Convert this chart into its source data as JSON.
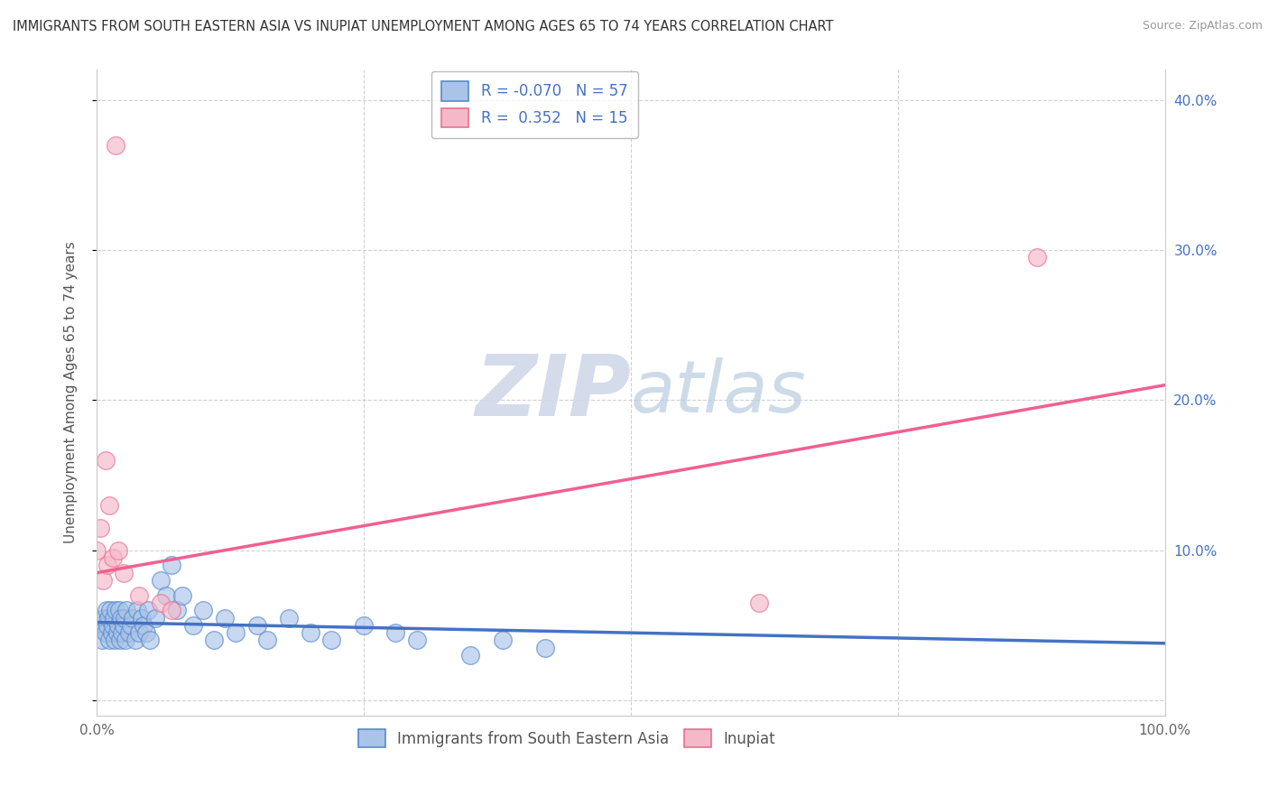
{
  "title": "IMMIGRANTS FROM SOUTH EASTERN ASIA VS INUPIAT UNEMPLOYMENT AMONG AGES 65 TO 74 YEARS CORRELATION CHART",
  "source": "Source: ZipAtlas.com",
  "ylabel": "Unemployment Among Ages 65 to 74 years",
  "xlim": [
    0,
    1.0
  ],
  "ylim": [
    -0.01,
    0.42
  ],
  "yticks": [
    0.0,
    0.1,
    0.2,
    0.3,
    0.4
  ],
  "yticklabels_left": [
    "",
    "",
    "",
    "",
    ""
  ],
  "yticklabels_right": [
    "",
    "10.0%",
    "20.0%",
    "30.0%",
    "40.0%"
  ],
  "xticks": [
    0.0,
    0.25,
    0.5,
    0.75,
    1.0
  ],
  "xticklabels": [
    "0.0%",
    "",
    "",
    "",
    "100.0%"
  ],
  "blue_R": -0.07,
  "blue_N": 57,
  "pink_R": 0.352,
  "pink_N": 15,
  "blue_label": "Immigrants from South Eastern Asia",
  "pink_label": "Inupiat",
  "blue_face_color": "#aac4e8",
  "pink_face_color": "#f5b8c8",
  "blue_edge_color": "#5588cc",
  "pink_edge_color": "#e87090",
  "blue_line_color": "#4472C4",
  "pink_line_color": "#f06090",
  "background_color": "#ffffff",
  "watermark_color": "#d0d8e8",
  "blue_x": [
    0.003,
    0.005,
    0.007,
    0.008,
    0.009,
    0.01,
    0.011,
    0.012,
    0.013,
    0.014,
    0.015,
    0.016,
    0.017,
    0.018,
    0.019,
    0.02,
    0.021,
    0.022,
    0.023,
    0.024,
    0.025,
    0.026,
    0.027,
    0.028,
    0.03,
    0.032,
    0.034,
    0.036,
    0.038,
    0.04,
    0.042,
    0.044,
    0.046,
    0.048,
    0.05,
    0.055,
    0.06,
    0.065,
    0.07,
    0.075,
    0.08,
    0.09,
    0.1,
    0.11,
    0.12,
    0.13,
    0.15,
    0.16,
    0.18,
    0.2,
    0.22,
    0.25,
    0.28,
    0.3,
    0.35,
    0.38,
    0.42
  ],
  "blue_y": [
    0.05,
    0.04,
    0.055,
    0.045,
    0.06,
    0.05,
    0.055,
    0.04,
    0.06,
    0.045,
    0.05,
    0.055,
    0.04,
    0.06,
    0.045,
    0.05,
    0.06,
    0.04,
    0.055,
    0.045,
    0.05,
    0.055,
    0.04,
    0.06,
    0.045,
    0.05,
    0.055,
    0.04,
    0.06,
    0.045,
    0.055,
    0.05,
    0.045,
    0.06,
    0.04,
    0.055,
    0.08,
    0.07,
    0.09,
    0.06,
    0.07,
    0.05,
    0.06,
    0.04,
    0.055,
    0.045,
    0.05,
    0.04,
    0.055,
    0.045,
    0.04,
    0.05,
    0.045,
    0.04,
    0.03,
    0.04,
    0.035
  ],
  "pink_x": [
    0.0,
    0.003,
    0.006,
    0.008,
    0.01,
    0.012,
    0.015,
    0.018,
    0.02,
    0.025,
    0.04,
    0.06,
    0.07,
    0.62,
    0.88
  ],
  "pink_y": [
    0.1,
    0.115,
    0.08,
    0.16,
    0.09,
    0.13,
    0.095,
    0.37,
    0.1,
    0.085,
    0.07,
    0.065,
    0.06,
    0.065,
    0.295
  ],
  "blue_trend_x": [
    0.0,
    1.0
  ],
  "blue_trend_y": [
    0.052,
    0.038
  ],
  "pink_trend_x": [
    0.0,
    1.0
  ],
  "pink_trend_y": [
    0.085,
    0.21
  ],
  "grid_color": "#cccccc"
}
